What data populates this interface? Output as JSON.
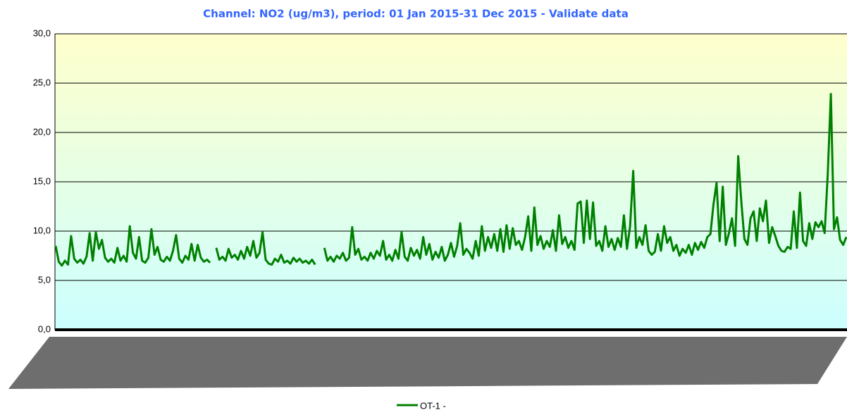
{
  "chart_data": {
    "type": "line",
    "title": "Channel: NO2 (ug/m3), period: 01 Jan 2015-31 Dec 2015 - Validate data",
    "ylim": [
      0,
      30
    ],
    "yticks": [
      {
        "value": 0,
        "label": "0,0"
      },
      {
        "value": 5,
        "label": "5,0"
      },
      {
        "value": 10,
        "label": "10,0"
      },
      {
        "value": 15,
        "label": "15,0"
      },
      {
        "value": 20,
        "label": "20,0"
      },
      {
        "value": 25,
        "label": "25,0"
      },
      {
        "value": 30,
        "label": "30,0"
      }
    ],
    "grid": true,
    "legend": "bottom",
    "series": [
      {
        "name": "OT-1 -",
        "color": "#008000",
        "values": [
          8.5,
          6.9,
          6.5,
          7.0,
          6.6,
          9.5,
          7.2,
          6.8,
          7.1,
          6.7,
          7.4,
          9.8,
          7.0,
          9.9,
          8.2,
          9.1,
          7.3,
          6.9,
          7.2,
          6.8,
          8.3,
          7.0,
          7.5,
          6.9,
          10.5,
          7.8,
          7.2,
          9.4,
          7.0,
          6.8,
          7.3,
          10.2,
          7.6,
          8.4,
          7.1,
          6.9,
          7.4,
          7.0,
          8.0,
          9.6,
          7.2,
          6.8,
          7.5,
          7.1,
          8.7,
          7.0,
          8.6,
          7.3,
          6.9,
          7.1,
          6.8,
          null,
          8.3,
          7.1,
          7.4,
          7.0,
          8.2,
          7.3,
          7.6,
          7.1,
          8.0,
          7.2,
          8.4,
          7.5,
          9.0,
          7.3,
          7.8,
          9.9,
          7.1,
          6.7,
          6.6,
          7.2,
          6.9,
          7.6,
          6.8,
          7.0,
          6.7,
          7.3,
          6.9,
          7.2,
          6.8,
          7.0,
          6.7,
          7.1,
          6.6,
          null,
          null,
          8.3,
          7.0,
          7.4,
          6.9,
          7.5,
          7.2,
          7.8,
          7.0,
          7.3,
          10.4,
          7.6,
          8.2,
          7.1,
          7.4,
          7.0,
          7.8,
          7.2,
          8.0,
          7.5,
          9.0,
          7.1,
          7.6,
          7.0,
          8.1,
          7.2,
          9.9,
          7.4,
          7.0,
          8.3,
          7.5,
          8.1,
          7.2,
          9.4,
          7.6,
          8.7,
          7.1,
          7.9,
          7.3,
          8.4,
          7.0,
          7.6,
          8.8,
          7.4,
          8.5,
          10.8,
          7.6,
          8.2,
          7.8,
          7.2,
          9.0,
          7.5,
          10.5,
          8.0,
          9.4,
          8.3,
          9.7,
          8.0,
          10.2,
          7.9,
          10.6,
          8.2,
          10.3,
          8.6,
          9.0,
          8.1,
          9.4,
          11.5,
          8.0,
          12.4,
          8.6,
          9.5,
          8.2,
          9.0,
          8.4,
          10.1,
          8.0,
          11.6,
          8.7,
          9.4,
          8.3,
          9.0,
          8.1,
          12.8,
          13.0,
          8.8,
          13.1,
          9.2,
          12.9,
          8.5,
          9.0,
          8.0,
          10.5,
          8.4,
          9.2,
          8.1,
          9.3,
          8.4,
          11.6,
          8.2,
          10.5,
          16.1,
          8.3,
          9.4,
          8.6,
          10.6,
          8.0,
          7.6,
          7.9,
          9.7,
          8.0,
          10.5,
          8.8,
          9.4,
          8.0,
          8.6,
          7.5,
          8.2,
          7.8,
          8.6,
          7.6,
          8.8,
          8.1,
          8.9,
          8.3,
          9.4,
          9.7,
          12.7,
          14.9,
          9.0,
          14.5,
          8.6,
          9.8,
          11.3,
          8.5,
          17.6,
          13.0,
          9.2,
          8.6,
          11.3,
          12.0,
          9.0,
          12.3,
          11.0,
          13.1,
          8.8,
          10.4,
          9.5,
          8.5,
          8.0,
          7.9,
          8.4,
          8.2,
          12.0,
          8.3,
          13.9,
          9.0,
          8.5,
          10.8,
          9.2,
          10.9,
          10.4,
          11.0,
          9.8,
          15.8,
          23.9,
          10.2,
          11.4,
          9.1,
          8.6,
          9.4
        ]
      }
    ]
  }
}
